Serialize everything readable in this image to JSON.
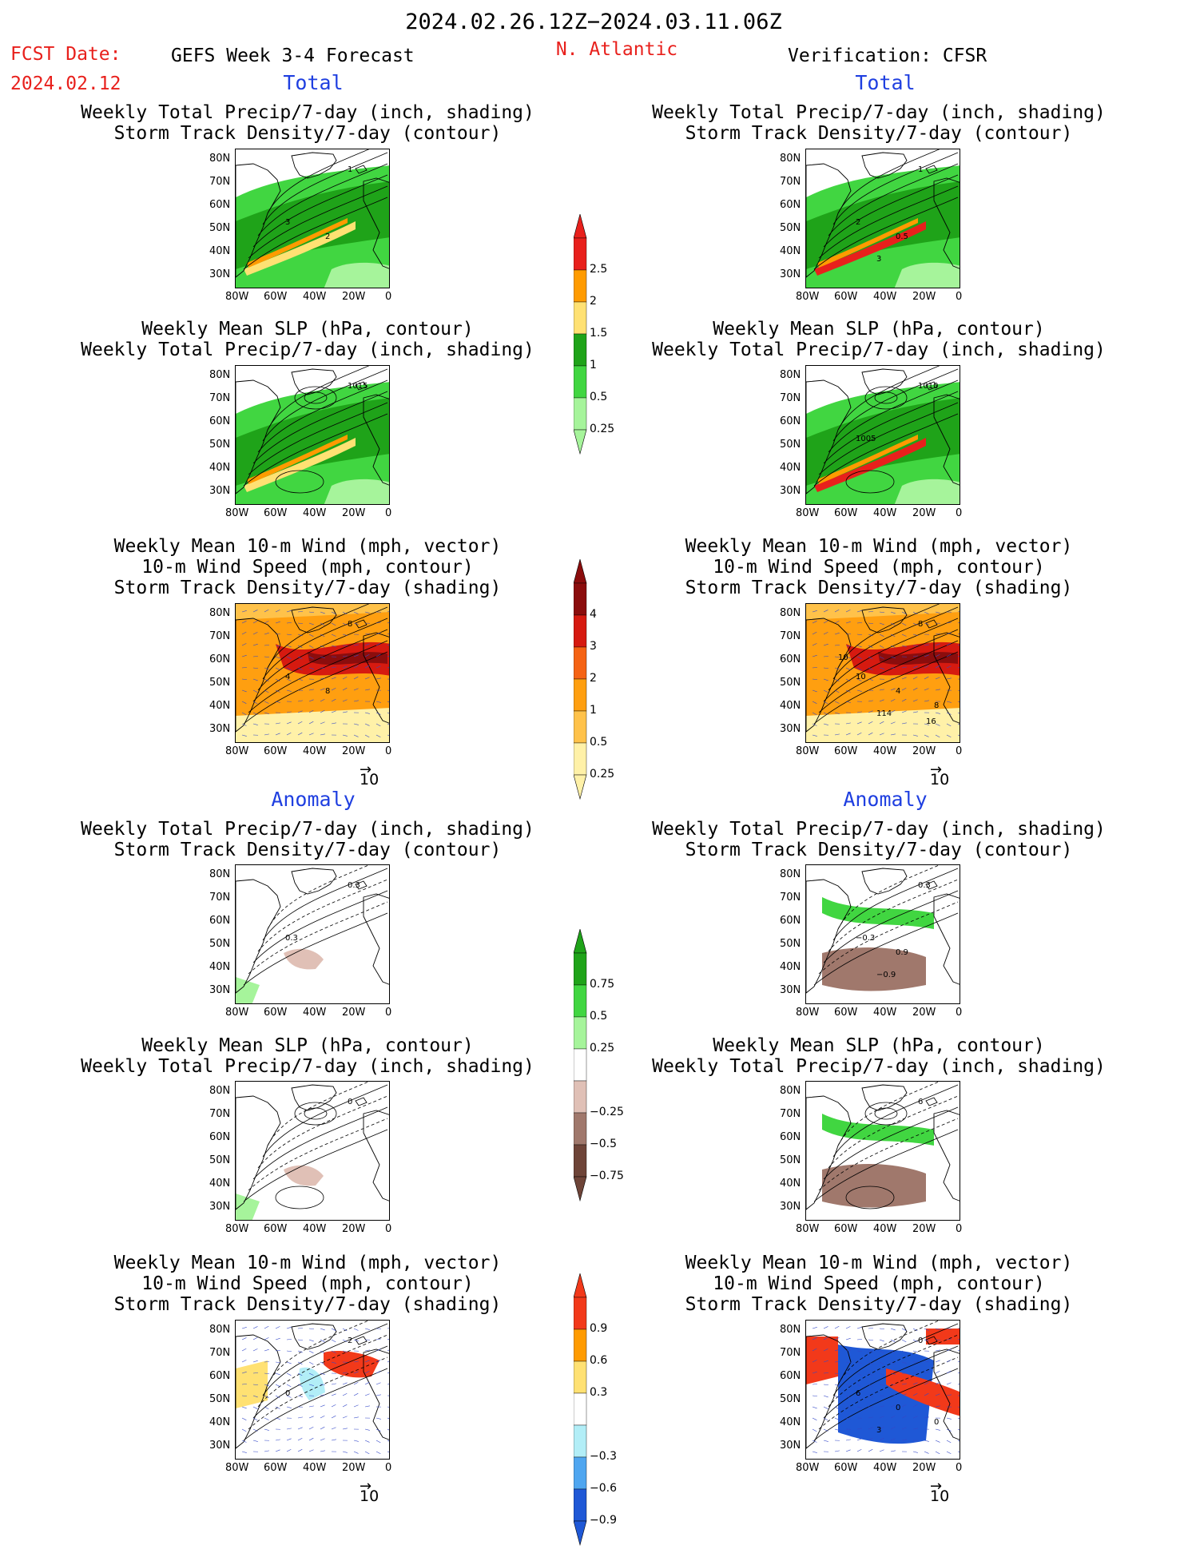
{
  "header": {
    "period": "2024.02.26.12Z−2024.03.11.06Z",
    "fcst_label": "FCST Date:",
    "fcst_date": "2024.02.12",
    "model": "GEFS Week 3-4 Forecast",
    "region": "N. Atlantic",
    "verification": "Verification: CFSR"
  },
  "sections": {
    "total": "Total",
    "anomaly": "Anomaly"
  },
  "titles": {
    "precip": [
      "Weekly Total Precip/7-day (inch, shading)",
      "Storm Track Density/7-day (contour)"
    ],
    "slp": [
      "Weekly Mean SLP (hPa, contour)",
      "Weekly Total Precip/7-day (inch, shading)"
    ],
    "wind": [
      "Weekly Mean 10-m Wind (mph, vector)",
      "10-m Wind Speed (mph, contour)",
      "Storm Track Density/7-day (shading)"
    ]
  },
  "axes": {
    "lat": [
      "80N",
      "70N",
      "60N",
      "50N",
      "40N",
      "30N"
    ],
    "lon": [
      "80W",
      "60W",
      "40W",
      "20W",
      "0"
    ]
  },
  "vector_ref": "10",
  "colorbars": {
    "precip_total": {
      "labels": [
        "2.5",
        "2",
        "1.5",
        "1",
        "0.5",
        "0.25"
      ],
      "colors": [
        "#e8201c",
        "#ff9b00",
        "#ffe173",
        "#1fa319",
        "#41d641",
        "#a6f49b"
      ]
    },
    "std_total": {
      "labels": [
        "4",
        "3",
        "2",
        "1",
        "0.5",
        "0.25"
      ],
      "colors": [
        "#8b0d0d",
        "#d61a10",
        "#f56314",
        "#ff9f10",
        "#ffc24a",
        "#fff1a8"
      ]
    },
    "precip_anom": {
      "labels": [
        "0.75",
        "0.5",
        "0.25",
        "−0.25",
        "−0.5",
        "−0.75"
      ],
      "colors": [
        "#1fa319",
        "#41d641",
        "#a6f49b",
        "#ffffff",
        "#e0c0b6",
        "#a0786c",
        "#6e4438"
      ]
    },
    "std_anom": {
      "labels": [
        "0.9",
        "0.6",
        "0.3",
        "−0.3",
        "−0.6",
        "−0.9"
      ],
      "colors": [
        "#f2391a",
        "#ff9b00",
        "#ffe173",
        "#ffffff",
        "#b2eef7",
        "#4fa6f0",
        "#1f58d6"
      ]
    }
  },
  "contour_labels": {
    "fc_precip": [
      "1",
      "3",
      "2"
    ],
    "ob_precip": [
      "1",
      "2",
      "0.5",
      "3"
    ],
    "fc_slp": [
      "1015"
    ],
    "ob_slp": [
      "1010",
      "1005"
    ],
    "fc_wind": [
      "8",
      "4",
      "8"
    ],
    "ob_wind": [
      "8",
      "10",
      "4",
      "114",
      "8",
      "10",
      "16"
    ],
    "fc_pa": [
      "0.3",
      "0.3"
    ],
    "ob_pa": [
      "0.3",
      "−0.3",
      "0.9",
      "−0.9"
    ],
    "fc_sa": [
      "0"
    ],
    "ob_sa": [
      "6"
    ],
    "fc_wa": [
      "2",
      "0"
    ],
    "ob_wa": [
      "0",
      "6",
      "0",
      "3",
      "0"
    ]
  },
  "colors": {
    "title_red": "#e8201c",
    "section_blue": "#1f3fe0"
  }
}
